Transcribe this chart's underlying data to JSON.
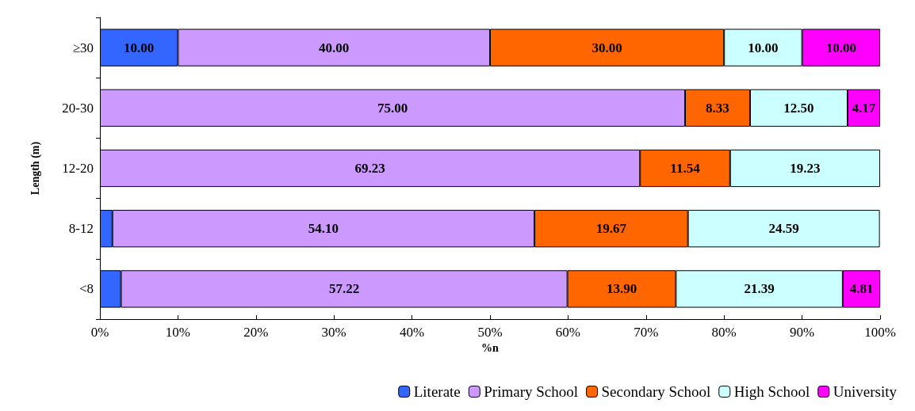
{
  "chart_data": {
    "type": "bar",
    "orientation": "horizontal",
    "stacked": true,
    "xlabel": "%n",
    "ylabel": "Length (m)",
    "categories": [
      "≥30",
      "20-30",
      "12-20",
      "8-12",
      "<8"
    ],
    "xlim": [
      0,
      100
    ],
    "xticks": [
      {
        "value": 0,
        "label": "0%"
      },
      {
        "value": 10,
        "label": "10%"
      },
      {
        "value": 20,
        "label": "20%"
      },
      {
        "value": 30,
        "label": "30%"
      },
      {
        "value": 40,
        "label": "40%"
      },
      {
        "value": 50,
        "label": "50%"
      },
      {
        "value": 60,
        "label": "60%"
      },
      {
        "value": 70,
        "label": "70%"
      },
      {
        "value": 80,
        "label": "80%"
      },
      {
        "value": 90,
        "label": "90%"
      },
      {
        "value": 100,
        "label": "100%"
      }
    ],
    "grid": false,
    "legend": "bottom right",
    "series": [
      {
        "name": "Literate",
        "color": "#3366ff",
        "values": [
          10,
          null,
          null,
          1.6,
          2.7
        ],
        "value_labels": [
          "10.00",
          null,
          null,
          null,
          null
        ]
      },
      {
        "name": "Primary School",
        "color": "#cc99ff",
        "values": [
          40,
          75,
          69.23,
          54.1,
          57.22
        ],
        "value_labels": [
          "40.00",
          "75.00",
          "69.23",
          "54.10",
          "57.22"
        ]
      },
      {
        "name": "Secondary School",
        "color": "#ff6600",
        "values": [
          30,
          8.33,
          11.54,
          19.67,
          13.9
        ],
        "value_labels": [
          "30.00",
          "8.33",
          "11.54",
          "19.67",
          "13.90"
        ]
      },
      {
        "name": "High School",
        "color": "#ccffff",
        "values": [
          10,
          12.5,
          19.23,
          24.59,
          21.39
        ],
        "value_labels": [
          "10.00",
          "12.50",
          "19.23",
          "24.59",
          "21.39"
        ]
      },
      {
        "name": "University",
        "color": "#ff00ff",
        "values": [
          10,
          4.17,
          null,
          null,
          4.81
        ],
        "value_labels": [
          "10.00",
          "4.17",
          null,
          null,
          "4.81"
        ]
      }
    ]
  }
}
